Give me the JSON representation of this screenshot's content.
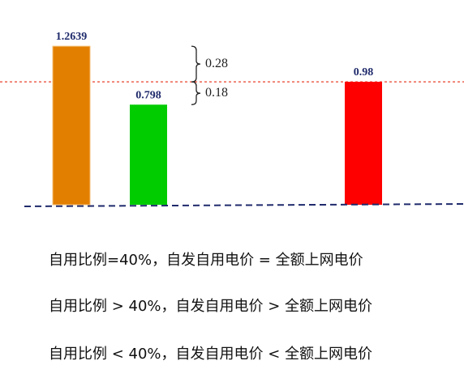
{
  "chart_data": {
    "type": "bar",
    "categories": [
      null,
      null,
      null
    ],
    "values": [
      1.2639,
      0.798,
      0.98
    ],
    "colors": [
      "#e37f00",
      "#00cc00",
      "#ff0000"
    ],
    "reference_line_color": "#e8402a",
    "baseline_color": "#1f2a6b",
    "annotations": [
      "0.28",
      "0.18"
    ],
    "notes": [
      "自用比例=40%，自发自用电价 = 全额上网电价",
      "自用比例 > 40%，自发自用电价  > 全额上网电价",
      "自用比例 < 40%，自发自用电价  < 全额上网电价"
    ]
  }
}
